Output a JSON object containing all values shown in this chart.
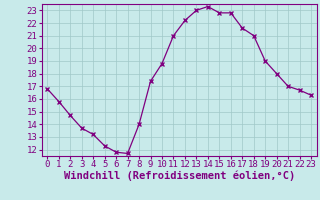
{
  "x": [
    0,
    1,
    2,
    3,
    4,
    5,
    6,
    7,
    8,
    9,
    10,
    11,
    12,
    13,
    14,
    15,
    16,
    17,
    18,
    19,
    20,
    21,
    22,
    23
  ],
  "y": [
    16.8,
    15.8,
    14.7,
    13.7,
    13.2,
    12.3,
    11.8,
    11.7,
    14.0,
    17.4,
    18.8,
    21.0,
    22.2,
    23.0,
    23.3,
    22.8,
    22.8,
    21.6,
    21.0,
    19.0,
    18.0,
    17.0,
    16.7,
    16.3
  ],
  "xlim": [
    -0.5,
    23.5
  ],
  "ylim": [
    11.5,
    23.5
  ],
  "yticks": [
    12,
    13,
    14,
    15,
    16,
    17,
    18,
    19,
    20,
    21,
    22,
    23
  ],
  "xticks": [
    0,
    1,
    2,
    3,
    4,
    5,
    6,
    7,
    8,
    9,
    10,
    11,
    12,
    13,
    14,
    15,
    16,
    17,
    18,
    19,
    20,
    21,
    22,
    23
  ],
  "xlabel": "Windchill (Refroidissement éolien,°C)",
  "line_color": "#800080",
  "marker": "x",
  "bg_color": "#c8eaea",
  "grid_color": "#a0c8c8",
  "tick_color": "#800080",
  "label_color": "#800080",
  "font_size": 6.5,
  "xlabel_fontsize": 7.5
}
